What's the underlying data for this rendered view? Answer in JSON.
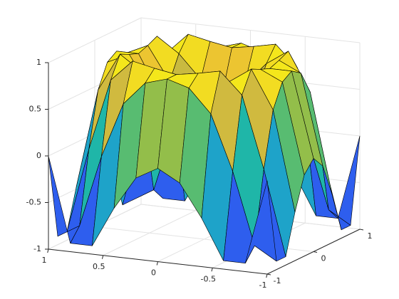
{
  "chart_data": {
    "type": "surface",
    "x": [
      -1,
      -0.8,
      -0.6,
      -0.4,
      -0.2,
      0,
      0.2,
      0.4,
      0.6,
      0.8,
      1
    ],
    "y": [
      -1,
      -0.8,
      -0.6,
      -0.4,
      -0.2,
      0,
      0.2,
      0.4,
      0.6,
      0.8,
      1
    ],
    "z": [
      [
        0,
        -0.91,
        -0.91,
        -0.48,
        -0.13,
        0,
        -0.13,
        -0.48,
        -0.91,
        -0.91,
        0
      ],
      [
        -0.91,
        -0.77,
        0,
        0.59,
        0.84,
        0.91,
        0.84,
        0.59,
        0,
        -0.77,
        -0.91
      ],
      [
        -0.91,
        0,
        0.77,
        1,
        0.95,
        0.91,
        0.95,
        1,
        0.77,
        0,
        -0.91
      ],
      [
        -0.48,
        0.59,
        1,
        0.84,
        0.59,
        0.48,
        0.59,
        0.84,
        1,
        0.59,
        -0.48
      ],
      [
        -0.13,
        0.84,
        0.95,
        0.59,
        0.25,
        0.13,
        0.25,
        0.59,
        0.95,
        0.84,
        -0.13
      ],
      [
        0,
        0.91,
        0.91,
        0.48,
        0.13,
        0,
        0.13,
        0.48,
        0.91,
        0.91,
        0
      ],
      [
        -0.13,
        0.84,
        0.95,
        0.59,
        0.25,
        0.13,
        0.25,
        0.59,
        0.95,
        0.84,
        -0.13
      ],
      [
        -0.48,
        0.59,
        1,
        0.84,
        0.59,
        0.48,
        0.59,
        0.84,
        1,
        0.59,
        -0.48
      ],
      [
        -0.91,
        0,
        0.77,
        1,
        0.95,
        0.91,
        0.95,
        1,
        0.77,
        0,
        -0.91
      ],
      [
        -0.91,
        -0.77,
        0,
        0.59,
        0.84,
        0.91,
        0.84,
        0.59,
        0,
        -0.77,
        -0.91
      ],
      [
        0,
        -0.91,
        -0.91,
        -0.48,
        -0.13,
        0,
        -0.13,
        -0.48,
        -0.91,
        -0.91,
        0
      ]
    ],
    "xlim": [
      -1,
      1
    ],
    "ylim": [
      -1,
      1
    ],
    "zlim": [
      -1,
      1
    ],
    "xticks": [
      -1,
      -0.5,
      0,
      0.5,
      1
    ],
    "yticks": [
      -1,
      0,
      1
    ],
    "zticks": [
      -1,
      -0.5,
      0,
      0.5,
      1
    ],
    "grid": true,
    "colormap": [
      "#3e26a8",
      "#2f5bef",
      "#1e96df",
      "#1fb6a8",
      "#7cc04f",
      "#e9b83a",
      "#f9fb0e"
    ]
  }
}
